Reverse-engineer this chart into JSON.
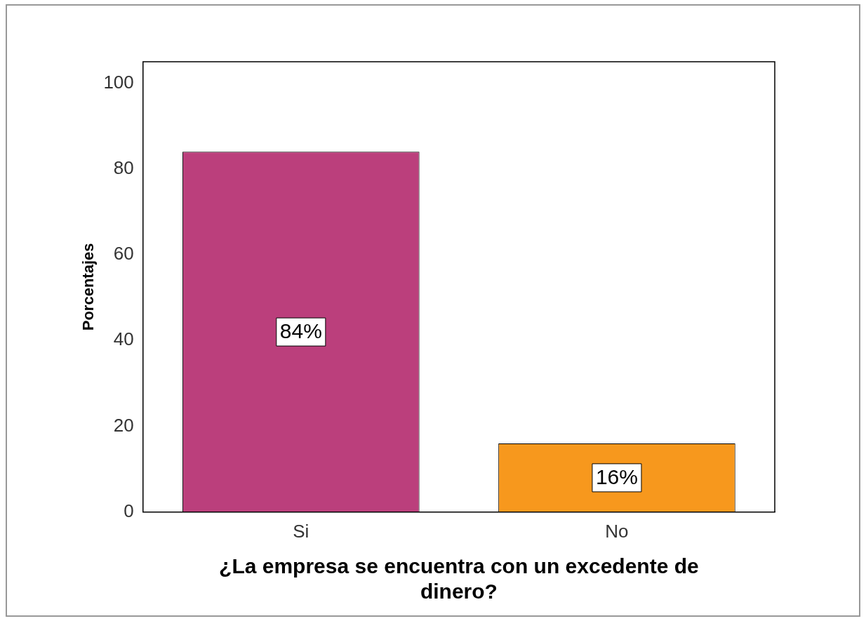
{
  "chart_data": {
    "type": "bar",
    "xlabel": "¿La empresa se encuentra con un excedente de dinero?",
    "ylabel": "Porcentajes",
    "categories": [
      "Si",
      "No"
    ],
    "values": [
      84,
      16
    ],
    "colors": [
      "#bb3f7c",
      "#f7981d"
    ],
    "value_labels": [
      "84%",
      "16%"
    ],
    "ylim": [
      0,
      105
    ],
    "yticks": [
      0,
      20,
      40,
      60,
      80,
      100
    ],
    "grid": false,
    "legend": false
  }
}
